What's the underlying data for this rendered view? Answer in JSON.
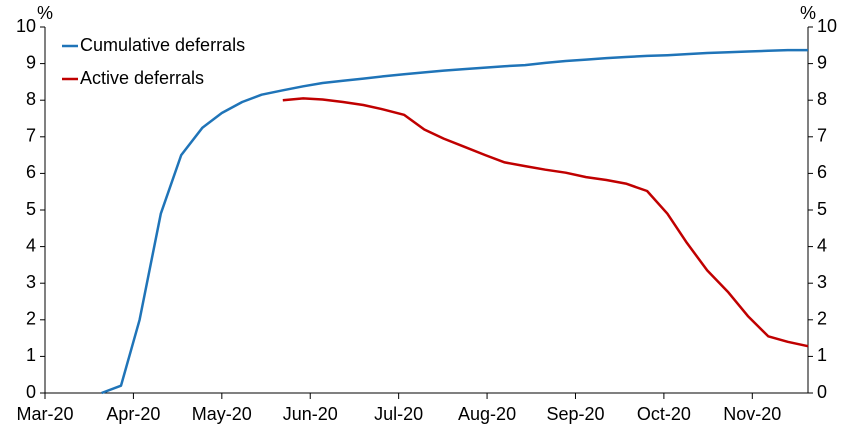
{
  "chart_data": {
    "type": "line",
    "y_label": "%",
    "y2_label": "%",
    "xlim": [
      3,
      11.63
    ],
    "xticks": [
      {
        "value": 3,
        "label": "Mar-20"
      },
      {
        "value": 4,
        "label": "Apr-20"
      },
      {
        "value": 5,
        "label": "May-20"
      },
      {
        "value": 6,
        "label": "Jun-20"
      },
      {
        "value": 7,
        "label": "Jul-20"
      },
      {
        "value": 8,
        "label": "Aug-20"
      },
      {
        "value": 9,
        "label": "Sep-20"
      },
      {
        "value": 10,
        "label": "Oct-20"
      },
      {
        "value": 11,
        "label": "Nov-20"
      }
    ],
    "ylim": [
      0,
      10
    ],
    "yticks": [
      0,
      1,
      2,
      3,
      4,
      5,
      6,
      7,
      8,
      9,
      10
    ],
    "y2lim": [
      0,
      10
    ],
    "y2ticks": [
      0,
      1,
      2,
      3,
      4,
      5,
      6,
      7,
      8,
      9,
      10
    ],
    "legend": "upper left",
    "series": [
      {
        "name": "Cumulative deferrals",
        "color": "#1f74b8",
        "x": [
          3.64,
          3.86,
          4.07,
          4.31,
          4.54,
          4.78,
          5.0,
          5.23,
          5.45,
          5.69,
          5.92,
          6.14,
          6.37,
          6.6,
          6.82,
          7.06,
          7.29,
          7.51,
          7.74,
          7.98,
          8.2,
          8.43,
          8.66,
          8.89,
          9.12,
          9.35,
          9.57,
          9.81,
          10.04,
          10.26,
          10.49,
          10.73,
          10.95,
          11.18,
          11.4,
          11.63
        ],
        "values": [
          0,
          0.2,
          2.0,
          4.9,
          6.5,
          7.25,
          7.65,
          7.95,
          8.15,
          8.27,
          8.38,
          8.47,
          8.53,
          8.59,
          8.65,
          8.71,
          8.76,
          8.81,
          8.85,
          8.89,
          8.93,
          8.96,
          9.02,
          9.07,
          9.11,
          9.15,
          9.18,
          9.21,
          9.23,
          9.26,
          9.29,
          9.31,
          9.33,
          9.35,
          9.37,
          9.37
        ]
      },
      {
        "name": "Active deferrals",
        "color": "#c00000",
        "x": [
          5.69,
          5.92,
          6.14,
          6.37,
          6.6,
          6.82,
          7.06,
          7.29,
          7.51,
          7.74,
          7.98,
          8.2,
          8.43,
          8.66,
          8.89,
          9.12,
          9.35,
          9.57,
          9.81,
          10.04,
          10.26,
          10.49,
          10.73,
          10.95,
          11.18,
          11.4,
          11.63
        ],
        "values": [
          8.0,
          8.05,
          8.02,
          7.95,
          7.87,
          7.75,
          7.6,
          7.2,
          6.95,
          6.73,
          6.5,
          6.3,
          6.2,
          6.1,
          6.02,
          5.9,
          5.82,
          5.72,
          5.52,
          4.9,
          4.1,
          3.35,
          2.75,
          2.1,
          1.55,
          1.4,
          1.28
        ]
      }
    ]
  }
}
